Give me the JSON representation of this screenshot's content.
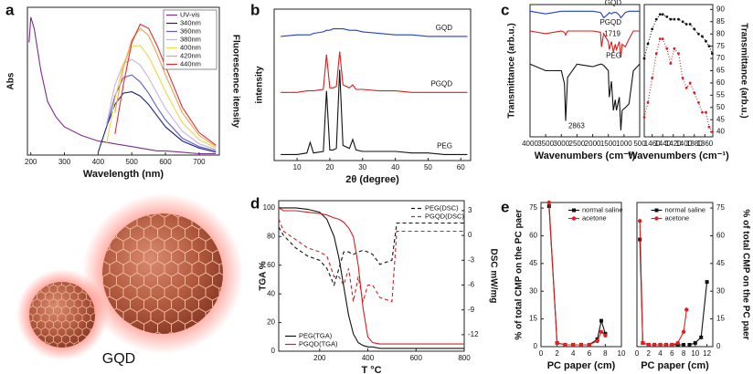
{
  "illustration": {
    "label": "GQD"
  },
  "chart_data": [
    {
      "type": "line",
      "panel": "a",
      "xlabel": "Wavelength (nm)",
      "ylabel": "Abs",
      "y2label": "Fluorescence itensity",
      "xlim": [
        190,
        760
      ],
      "ylim": [
        0,
        1.05
      ],
      "xticks": [
        200,
        300,
        400,
        500,
        600,
        700
      ],
      "legend": "upper right",
      "x": [
        195,
        200,
        210,
        230,
        250,
        275,
        300,
        350,
        400,
        425,
        450,
        475,
        500,
        525,
        550,
        575,
        600,
        650,
        700,
        750
      ],
      "series": [
        {
          "name": "UV-vis",
          "color": "#7b2d8e",
          "values": [
            0.8,
            0.98,
            0.9,
            0.6,
            0.38,
            0.27,
            0.2,
            0.14,
            0.1,
            0.09,
            0.08,
            0.07,
            0.06,
            0.05,
            0.04,
            0.03,
            0.03,
            0.02,
            0.01,
            0.01
          ]
        },
        {
          "name": "340nm",
          "color": "#1a237e",
          "values": [
            null,
            null,
            null,
            null,
            null,
            null,
            null,
            null,
            0.02,
            0.2,
            0.36,
            0.44,
            0.45,
            0.42,
            0.36,
            0.28,
            0.2,
            0.1,
            0.05,
            0.02
          ]
        },
        {
          "name": "360nm",
          "color": "#5c5ccc",
          "values": [
            null,
            null,
            null,
            null,
            null,
            null,
            null,
            null,
            null,
            0.2,
            0.42,
            0.55,
            0.57,
            0.52,
            0.44,
            0.34,
            0.25,
            0.12,
            0.06,
            0.03
          ]
        },
        {
          "name": "380nm",
          "color": "#c8b4e0",
          "values": [
            null,
            null,
            null,
            null,
            null,
            null,
            null,
            null,
            null,
            0.22,
            0.5,
            0.65,
            0.68,
            0.64,
            0.55,
            0.44,
            0.33,
            0.17,
            0.08,
            0.04
          ]
        },
        {
          "name": "400nm",
          "color": "#f0d840",
          "values": [
            null,
            null,
            null,
            null,
            null,
            null,
            null,
            null,
            null,
            0.08,
            0.4,
            0.65,
            0.77,
            0.78,
            0.7,
            0.58,
            0.45,
            0.23,
            0.11,
            0.05
          ]
        },
        {
          "name": "420nm",
          "color": "#f5a050",
          "values": [
            null,
            null,
            null,
            null,
            null,
            null,
            null,
            null,
            null,
            null,
            0.3,
            0.62,
            0.82,
            0.9,
            0.85,
            0.72,
            0.57,
            0.3,
            0.14,
            0.06
          ]
        },
        {
          "name": "440nm",
          "color": "#e03030",
          "values": [
            null,
            null,
            null,
            null,
            null,
            null,
            null,
            null,
            null,
            null,
            0.15,
            0.5,
            0.8,
            0.93,
            0.9,
            0.78,
            0.63,
            0.34,
            0.16,
            0.07
          ]
        }
      ]
    },
    {
      "type": "line",
      "panel": "b",
      "xlabel": "2θ (degree)",
      "ylabel": "intensity",
      "series_labels": "inline",
      "xlim": [
        3,
        63
      ],
      "ylim": [
        0,
        1
      ],
      "xticks": [
        10,
        20,
        30,
        40,
        50,
        60
      ],
      "x": [
        5,
        10,
        13,
        14,
        15,
        18,
        19,
        20,
        21,
        22,
        23,
        24,
        26,
        27,
        28,
        30,
        35,
        40,
        45,
        50,
        55,
        60,
        62
      ],
      "series": [
        {
          "name": "GQD",
          "color": "#1f3fcf",
          "values": [
            0.82,
            0.83,
            0.83,
            0.83,
            0.84,
            0.85,
            0.86,
            0.86,
            0.87,
            0.87,
            0.87,
            0.87,
            0.86,
            0.86,
            0.86,
            0.85,
            0.84,
            0.83,
            0.83,
            0.82,
            0.82,
            0.82,
            0.82
          ]
        },
        {
          "name": "PGQD",
          "color": "#d42020",
          "values": [
            0.45,
            0.45,
            0.46,
            0.46,
            0.46,
            0.47,
            0.7,
            0.48,
            0.48,
            0.49,
            0.72,
            0.5,
            0.48,
            0.5,
            0.47,
            0.47,
            0.46,
            0.46,
            0.45,
            0.45,
            0.45,
            0.45,
            0.45
          ]
        },
        {
          "name": "PEG",
          "color": "#111111",
          "values": [
            0.04,
            0.04,
            0.05,
            0.12,
            0.05,
            0.06,
            0.46,
            0.07,
            0.07,
            0.08,
            0.6,
            0.1,
            0.08,
            0.14,
            0.07,
            0.06,
            0.06,
            0.06,
            0.05,
            0.05,
            0.04,
            0.04,
            0.04
          ]
        }
      ]
    },
    {
      "type": "line",
      "panel": "c",
      "xlabel": "Wavenumbers (cm⁻¹)",
      "ylabel": "Transmittance (arb.u.)",
      "series_labels": "inline",
      "xlim": [
        4000,
        500
      ],
      "ylim": [
        0,
        1
      ],
      "xticks": [
        4000,
        3500,
        3000,
        2500,
        2000,
        1500,
        1000,
        500
      ],
      "x": [
        4000,
        3500,
        3000,
        2900,
        2863,
        2800,
        2500,
        2000,
        1750,
        1719,
        1650,
        1500,
        1470,
        1400,
        1340,
        1280,
        1240,
        1150,
        1100,
        1060,
        960,
        840,
        700,
        500
      ],
      "series": [
        {
          "name": "GQD",
          "color": "#1f3fcf",
          "values": [
            0.95,
            0.93,
            0.95,
            0.95,
            0.95,
            0.95,
            0.95,
            0.95,
            0.94,
            0.93,
            0.9,
            0.93,
            0.94,
            0.93,
            0.94,
            0.94,
            0.94,
            0.92,
            0.9,
            0.91,
            0.94,
            0.95,
            0.95,
            0.95
          ]
        },
        {
          "name": "PGQD",
          "color": "#d42020",
          "values": [
            0.8,
            0.78,
            0.8,
            0.79,
            0.77,
            0.8,
            0.8,
            0.8,
            0.79,
            0.68,
            0.78,
            0.72,
            0.66,
            0.72,
            0.64,
            0.7,
            0.66,
            0.72,
            0.6,
            0.7,
            0.68,
            0.74,
            0.8,
            0.8
          ]
        },
        {
          "name": "PEG",
          "color": "#111111",
          "values": [
            0.55,
            0.5,
            0.5,
            0.4,
            0.12,
            0.45,
            0.55,
            0.53,
            0.55,
            0.55,
            0.54,
            0.5,
            0.3,
            0.42,
            0.2,
            0.28,
            0.2,
            0.3,
            0.05,
            0.2,
            0.22,
            0.25,
            0.5,
            0.55
          ]
        }
      ],
      "annotations": [
        {
          "text": "2863",
          "x": 2863,
          "y": 0.12,
          "color": "#111111"
        },
        {
          "text": "1719",
          "x": 1719,
          "y": 0.72,
          "color": "#d42020"
        }
      ]
    },
    {
      "type": "line",
      "xlabel": "Wavenumbers (cm⁻¹)",
      "ylabel": "Transmittance (arb.u.)",
      "yaxis_side": "right",
      "xlim": [
        1475,
        1345
      ],
      "ylim": [
        38,
        92
      ],
      "xticks": [
        1460,
        1440,
        1420,
        1400,
        1380,
        1360
      ],
      "yticks": [
        40,
        45,
        50,
        55,
        60,
        65,
        70,
        75,
        80,
        85,
        90
      ],
      "x": [
        1475,
        1468,
        1460,
        1452,
        1445,
        1440,
        1432,
        1425,
        1418,
        1410,
        1402,
        1395,
        1388,
        1380,
        1372,
        1365,
        1358,
        1352,
        1346
      ],
      "series": [
        {
          "color": "#111111",
          "marker": "circle",
          "style": "dotted",
          "values": [
            70,
            76,
            82,
            86,
            88,
            88,
            87,
            86,
            86,
            86,
            85,
            84,
            84,
            82,
            80,
            79,
            77,
            75,
            72
          ]
        },
        {
          "color": "#d42020",
          "marker": "circle",
          "style": "dotted",
          "values": [
            46,
            52,
            62,
            72,
            78,
            78,
            74,
            68,
            74,
            72,
            62,
            58,
            60,
            56,
            52,
            48,
            48,
            42,
            40
          ]
        }
      ]
    },
    {
      "type": "line",
      "panel": "d",
      "xlabel": "T °C",
      "ylabel": "TGA %",
      "y2label": "DSC mW/mg",
      "xlim": [
        30,
        800
      ],
      "ylim": [
        0,
        105
      ],
      "y2lim": [
        -14,
        4.2
      ],
      "xticks": [
        200,
        400,
        600,
        800
      ],
      "yticks": [
        0,
        20,
        40,
        60,
        80,
        100
      ],
      "y2ticks": [
        3,
        0,
        -3,
        -6,
        -9,
        -12
      ],
      "x": [
        30,
        50,
        100,
        150,
        200,
        230,
        260,
        280,
        300,
        320,
        340,
        360,
        380,
        400,
        420,
        450,
        500,
        520,
        550,
        600,
        700,
        800
      ],
      "series": [
        {
          "name": "PEG(DSC)",
          "color": "#111111",
          "style": "dashed",
          "axis": "y2",
          "legend_corner": "upper right",
          "values": [
            1,
            0,
            -1.5,
            -2.5,
            -3,
            -4,
            -6,
            -4,
            -2,
            -2,
            -2.3,
            -2,
            -1.8,
            -2,
            -2.3,
            -3.5,
            -3,
            1.5,
            1.5,
            1.5,
            1.5,
            1.5
          ]
        },
        {
          "name": "PGQD(DSC)",
          "color": "#d42020",
          "style": "dashed",
          "axis": "y2",
          "legend_corner": "upper right",
          "values": [
            2,
            0.5,
            -0.5,
            -1.5,
            -2,
            -2.5,
            -5,
            -5,
            -6,
            -4,
            -8,
            -5,
            -8,
            -6,
            -6,
            -7.5,
            -8,
            0.5,
            0.5,
            0.5,
            0.5,
            0.5
          ]
        },
        {
          "name": "PEG(TGA)",
          "color": "#111111",
          "legend_corner": "lower left",
          "values": [
            100,
            100,
            100,
            99,
            97,
            92,
            80,
            65,
            45,
            25,
            12,
            6,
            4,
            3,
            3,
            2,
            2,
            2,
            2,
            2,
            2,
            2
          ]
        },
        {
          "name": "PGQD(TGA)",
          "color": "#d42020",
          "legend_corner": "lower left",
          "values": [
            100,
            98,
            98,
            97,
            96,
            95,
            93,
            92,
            90,
            86,
            80,
            60,
            30,
            10,
            6,
            5,
            5,
            5,
            5,
            5,
            5,
            5
          ]
        }
      ]
    },
    {
      "type": "line",
      "panel": "e",
      "xlabel": "PC paper (cm)",
      "ylabel": "% of total CMP on the PC paer",
      "legend": "upper right",
      "xlim": [
        0,
        10
      ],
      "ylim": [
        0,
        78
      ],
      "xticks": [
        0,
        2,
        4,
        6,
        8,
        10
      ],
      "yticks": [
        0,
        15,
        30,
        45,
        60,
        75
      ],
      "x": [
        1,
        2,
        3,
        4,
        5,
        6,
        7,
        7.5,
        8
      ],
      "series": [
        {
          "name": "normal saline",
          "color": "#111111",
          "marker": "square",
          "values": [
            76,
            2,
            1,
            1,
            1,
            1,
            4,
            14,
            7
          ]
        },
        {
          "name": "acetone",
          "color": "#e02020",
          "marker": "circle",
          "values": [
            78,
            2,
            1,
            1,
            1,
            1,
            3,
            8,
            6
          ]
        }
      ]
    },
    {
      "type": "line",
      "xlabel": "PC paper (cm)",
      "ylabel": "% of total CMP on the PC paer",
      "yaxis_side": "right",
      "legend": "upper center",
      "xlim": [
        0,
        13
      ],
      "ylim": [
        0,
        78
      ],
      "xticks": [
        0,
        2,
        4,
        6,
        8,
        10,
        12
      ],
      "yticks": [
        0,
        15,
        30,
        45,
        60,
        75
      ],
      "x": [
        0.5,
        1,
        2,
        3,
        4,
        5,
        6,
        7,
        8,
        8.5,
        9,
        10,
        11,
        12
      ],
      "series": [
        {
          "name": "normal saline",
          "color": "#111111",
          "marker": "square",
          "values": [
            58,
            2,
            1,
            1,
            1,
            1,
            1,
            1,
            1,
            null,
            1,
            2,
            5,
            35
          ]
        },
        {
          "name": "acetone",
          "color": "#e02020",
          "marker": "circle",
          "values": [
            68,
            2,
            1,
            1,
            1,
            1,
            1,
            2,
            8,
            20,
            null,
            null,
            null,
            null
          ]
        }
      ]
    }
  ]
}
